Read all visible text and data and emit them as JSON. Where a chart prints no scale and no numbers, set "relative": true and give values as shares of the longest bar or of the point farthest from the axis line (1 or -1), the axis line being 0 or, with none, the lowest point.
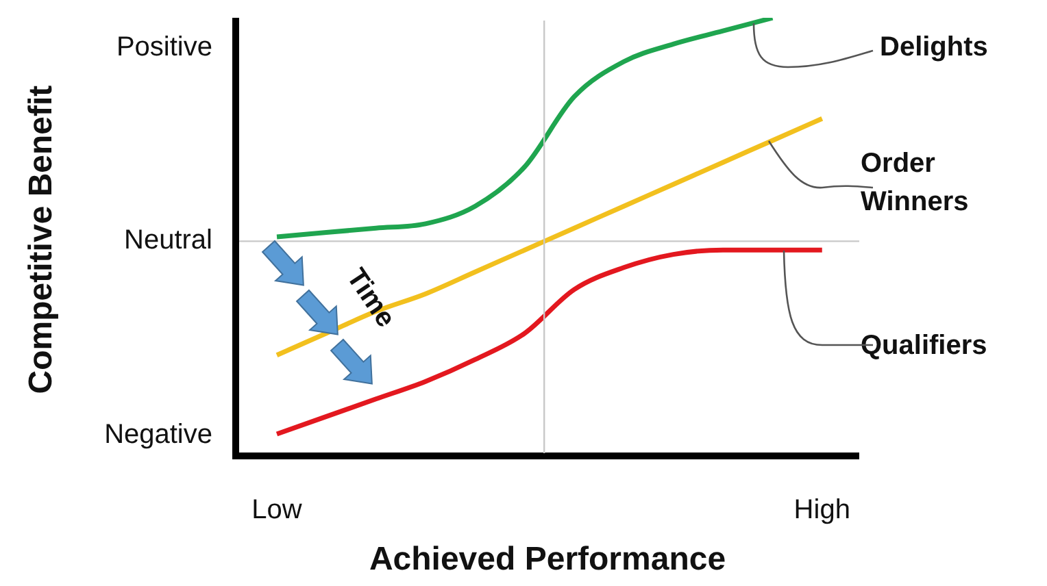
{
  "chart_data": {
    "type": "line",
    "xlabel": "Achieved Performance",
    "relative": true,
    "categories": [
      "Low",
      null,
      null,
      null,
      null,
      null,
      null,
      null,
      null,
      null,
      null,
      "High"
    ],
    "grid": false,
    "legend": false,
    "marker": "none",
    "ref_lines": [
      {
        "axis": "y",
        "value": 0.49,
        "color": "#c8c8c8"
      }
    ],
    "annotations": [
      "Competitive Benefit",
      "Positive",
      "Neutral",
      "Negative",
      "Time"
    ],
    "series": [
      {
        "name": "Delights",
        "color": "#1fa54f",
        "values": [
          0.5,
          0.51,
          0.52,
          0.53,
          0.57,
          0.66,
          0.82,
          0.9,
          0.94,
          0.97,
          1.0,
          null
        ]
      },
      {
        "name": "Order Winners",
        "color": "#f2c01e",
        "values": [
          0.23,
          0.28,
          0.33,
          0.37,
          0.42,
          0.47,
          0.52,
          0.57,
          0.62,
          0.67,
          0.72,
          0.77
        ]
      },
      {
        "name": "Qualifiers",
        "color": "#e3181f",
        "values": [
          0.05,
          0.09,
          0.13,
          0.17,
          0.22,
          0.28,
          0.38,
          0.43,
          0.46,
          0.47,
          0.47,
          0.47
        ]
      }
    ]
  }
}
